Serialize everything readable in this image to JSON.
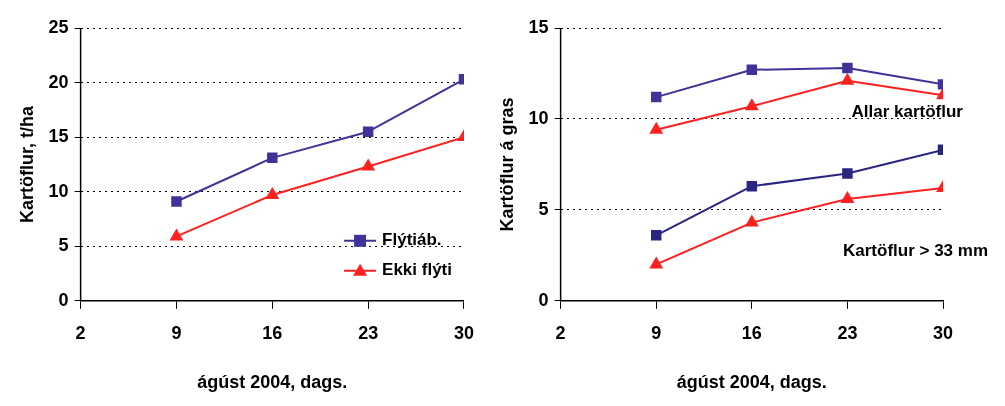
{
  "chart_data": [
    {
      "type": "line",
      "xlabel": "ágúst 2004, dags.",
      "ylabel": "Kartöflur, t/ha",
      "x": [
        9,
        16,
        23,
        30
      ],
      "xlim": [
        2,
        30
      ],
      "xticks": [
        2,
        9,
        16,
        23,
        30
      ],
      "ylim": [
        0,
        25
      ],
      "yticks": [
        0,
        5,
        10,
        15,
        20,
        25
      ],
      "grid": "y",
      "legend": "bottom right",
      "series": [
        {
          "name": "Flýtiáb.",
          "color": "#3f3399",
          "marker": "square",
          "values": [
            9.1,
            13.1,
            15.5,
            20.3
          ]
        },
        {
          "name": "Ekki flýti",
          "color": "#ff2020",
          "marker": "triangle",
          "values": [
            5.9,
            9.7,
            12.3,
            15.0
          ]
        }
      ]
    },
    {
      "type": "line",
      "xlabel": "ágúst 2004, dags.",
      "ylabel": "Kartöflur á gras",
      "x": [
        9,
        16,
        23,
        30
      ],
      "xlim": [
        2,
        30
      ],
      "xticks": [
        2,
        9,
        16,
        23,
        30
      ],
      "ylim": [
        0,
        15
      ],
      "yticks": [
        0,
        5,
        10,
        15
      ],
      "grid": "y",
      "legend": false,
      "series": [
        {
          "color": "#3f3399",
          "marker": "square",
          "values": [
            11.2,
            12.7,
            12.8,
            11.9
          ]
        },
        {
          "color": "#ff2020",
          "marker": "triangle",
          "values": [
            9.4,
            10.7,
            12.1,
            11.3
          ]
        },
        {
          "color": "#2a2580",
          "marker": "square",
          "values": [
            3.6,
            6.3,
            7.0,
            8.3
          ]
        },
        {
          "color": "#ff2020",
          "marker": "triangle",
          "values": [
            2.0,
            4.3,
            5.6,
            6.2
          ]
        }
      ],
      "annotations": [
        "Allar kartöflur",
        "Kartöflur > 33 mm"
      ]
    }
  ]
}
